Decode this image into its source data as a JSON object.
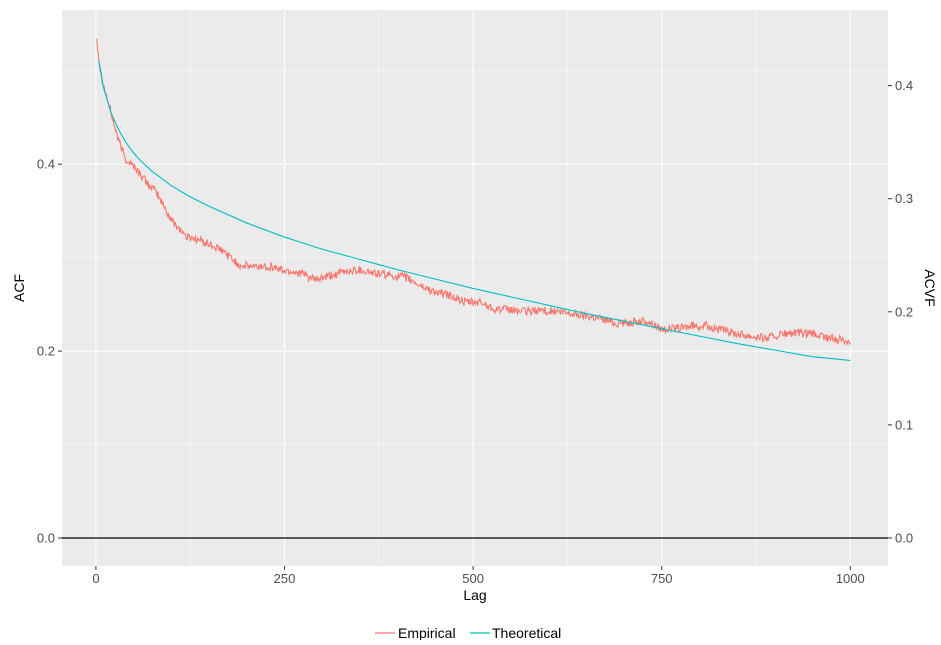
{
  "chart_data": {
    "type": "line",
    "title": "",
    "xlabel": "Lag",
    "ylabel": "ACF",
    "y2label": "ACVF",
    "xlim": [
      -45,
      1050
    ],
    "ylim": [
      -0.03,
      0.565
    ],
    "y2lim": [
      -0.0248,
      0.4669
    ],
    "x_ticks": [
      0,
      250,
      500,
      750,
      1000
    ],
    "x_tick_labels": [
      "0",
      "250",
      "500",
      "750",
      "1000"
    ],
    "y_ticks": [
      0.0,
      0.2,
      0.4
    ],
    "y_tick_labels": [
      "0.0",
      "0.2",
      "0.4"
    ],
    "y2_ticks": [
      0.0,
      0.1,
      0.2,
      0.3,
      0.4
    ],
    "y2_tick_labels": [
      "0.0",
      "0.1",
      "0.2",
      "0.3",
      "0.4"
    ],
    "hline": 0,
    "grid": true,
    "legend_position": "bottom",
    "colors": {
      "panel": "#ebebeb",
      "grid": "#ffffff",
      "empirical": "#f8766d",
      "theoretical": "#00bfc4",
      "zero_line": "#000000"
    },
    "series": [
      {
        "name": "Empirical",
        "color": "#f8766d",
        "x": [
          1,
          5,
          10,
          20,
          30,
          40,
          50,
          60,
          70,
          80,
          90,
          100,
          110,
          120,
          125,
          140,
          150,
          170,
          190,
          210,
          230,
          250,
          270,
          290,
          310,
          330,
          350,
          370,
          390,
          410,
          430,
          450,
          470,
          490,
          510,
          530,
          550,
          570,
          590,
          610,
          630,
          650,
          670,
          690,
          710,
          730,
          750,
          770,
          790,
          810,
          830,
          850,
          870,
          890,
          910,
          930,
          950,
          970,
          990,
          1000
        ],
        "y": [
          0.535,
          0.505,
          0.485,
          0.455,
          0.425,
          0.405,
          0.398,
          0.388,
          0.378,
          0.37,
          0.355,
          0.34,
          0.332,
          0.322,
          0.322,
          0.318,
          0.314,
          0.306,
          0.292,
          0.29,
          0.291,
          0.286,
          0.284,
          0.276,
          0.28,
          0.285,
          0.287,
          0.283,
          0.281,
          0.279,
          0.27,
          0.263,
          0.259,
          0.252,
          0.252,
          0.245,
          0.244,
          0.242,
          0.244,
          0.242,
          0.24,
          0.238,
          0.235,
          0.23,
          0.231,
          0.232,
          0.224,
          0.224,
          0.227,
          0.227,
          0.222,
          0.219,
          0.216,
          0.214,
          0.218,
          0.219,
          0.218,
          0.214,
          0.212,
          0.21
        ]
      },
      {
        "name": "Theoretical",
        "color": "#00bfc4",
        "x": [
          4,
          10,
          20,
          30,
          40,
          50,
          60,
          75,
          100,
          125,
          150,
          200,
          250,
          300,
          350,
          400,
          450,
          500,
          550,
          600,
          650,
          700,
          750,
          800,
          850,
          900,
          950,
          1000
        ],
        "y": [
          0.51,
          0.482,
          0.455,
          0.437,
          0.423,
          0.412,
          0.403,
          0.392,
          0.377,
          0.365,
          0.355,
          0.337,
          0.322,
          0.309,
          0.298,
          0.287,
          0.277,
          0.267,
          0.258,
          0.249,
          0.24,
          0.232,
          0.224,
          0.216,
          0.208,
          0.201,
          0.194,
          0.19
        ]
      }
    ]
  }
}
